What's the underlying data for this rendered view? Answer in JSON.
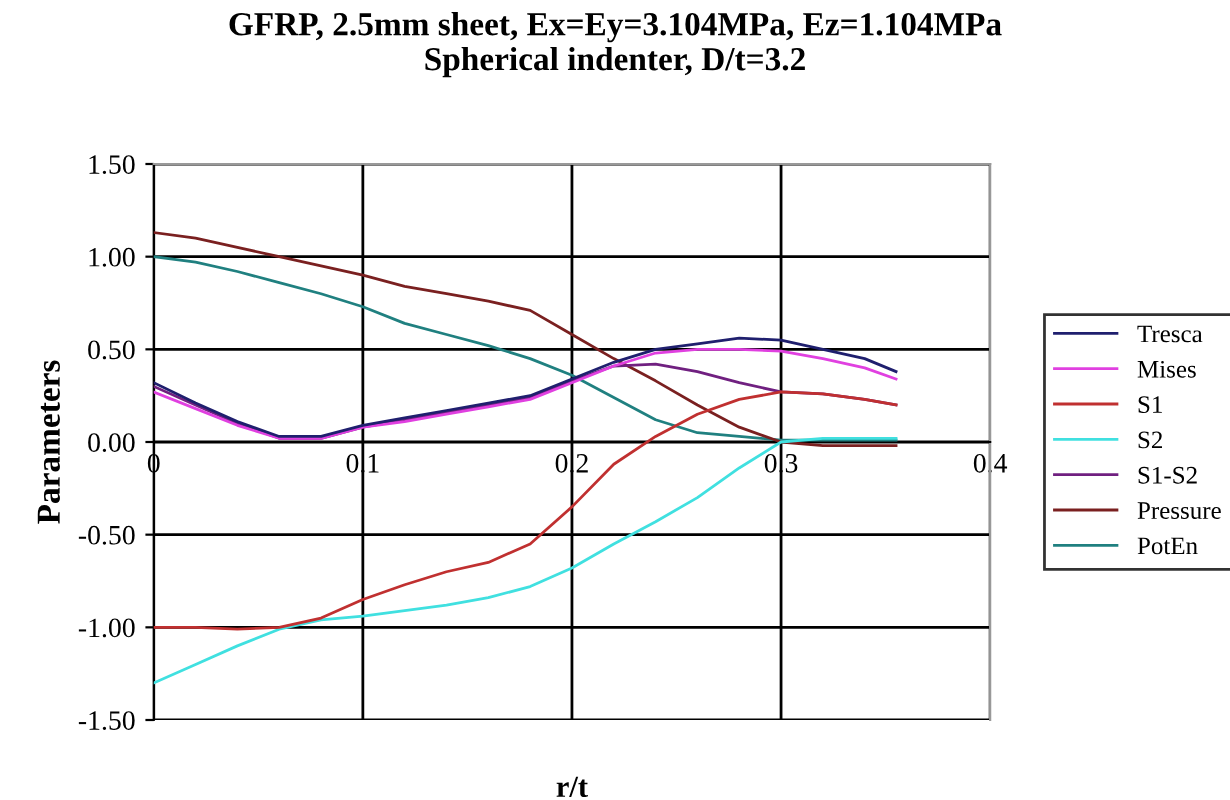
{
  "chart_data": {
    "type": "line",
    "title": "GFRP, 2.5mm sheet, Ex=Ey=3.104MPa, Ez=1.104MPa\nSpherical indenter, D/t=3.2",
    "xlabel": "r/t",
    "ylabel": "Parameters",
    "x": [
      0,
      0.02,
      0.04,
      0.06,
      0.08,
      0.1,
      0.12,
      0.14,
      0.16,
      0.18,
      0.2,
      0.22,
      0.24,
      0.26,
      0.28,
      0.3,
      0.32,
      0.34,
      0.355
    ],
    "series": [
      {
        "name": "Tresca",
        "color": "#1f1f6e",
        "values": [
          0.32,
          0.21,
          0.11,
          0.03,
          0.03,
          0.09,
          0.13,
          0.17,
          0.21,
          0.25,
          0.34,
          0.43,
          0.5,
          0.53,
          0.56,
          0.55,
          0.5,
          0.45,
          0.38
        ]
      },
      {
        "name": "Mises",
        "color": "#e040e0",
        "values": [
          0.27,
          0.18,
          0.09,
          0.02,
          0.02,
          0.08,
          0.11,
          0.15,
          0.19,
          0.23,
          0.32,
          0.41,
          0.48,
          0.5,
          0.5,
          0.49,
          0.45,
          0.4,
          0.34
        ]
      },
      {
        "name": "S1",
        "color": "#c03030",
        "values": [
          -1.0,
          -1.0,
          -1.01,
          -1.0,
          -0.95,
          -0.85,
          -0.77,
          -0.7,
          -0.65,
          -0.55,
          -0.35,
          -0.12,
          0.03,
          0.15,
          0.23,
          0.27,
          0.26,
          0.23,
          0.2
        ]
      },
      {
        "name": "S2",
        "color": "#40e0e0",
        "values": [
          -1.3,
          -1.2,
          -1.1,
          -1.01,
          -0.96,
          -0.94,
          -0.91,
          -0.88,
          -0.84,
          -0.78,
          -0.68,
          -0.55,
          -0.43,
          -0.3,
          -0.14,
          0.0,
          0.02,
          0.02,
          0.02
        ]
      },
      {
        "name": "S1-S2",
        "color": "#702080",
        "values": [
          0.3,
          0.2,
          0.1,
          0.02,
          0.02,
          0.08,
          0.12,
          0.16,
          0.2,
          0.24,
          0.33,
          0.41,
          0.42,
          0.38,
          0.32,
          0.27,
          0.26,
          0.23,
          0.2
        ]
      },
      {
        "name": "Pressure",
        "color": "#7a2020",
        "values": [
          1.13,
          1.1,
          1.05,
          1.0,
          0.95,
          0.9,
          0.84,
          0.8,
          0.76,
          0.71,
          0.58,
          0.45,
          0.33,
          0.2,
          0.08,
          0.0,
          -0.02,
          -0.02,
          -0.02
        ]
      },
      {
        "name": "PotEn",
        "color": "#208080",
        "values": [
          1.0,
          0.97,
          0.92,
          0.86,
          0.8,
          0.73,
          0.64,
          0.58,
          0.52,
          0.45,
          0.36,
          0.24,
          0.12,
          0.05,
          0.03,
          0.01,
          0.01,
          0.01,
          0.01
        ]
      }
    ],
    "xlim": [
      0,
      0.4
    ],
    "ylim": [
      -1.5,
      1.5
    ],
    "xticks": [
      0,
      0.1,
      0.2,
      0.3,
      0.4
    ],
    "yticks": [
      {
        "value": -1.5,
        "label": "-1.50"
      },
      {
        "value": -1.0,
        "label": "-1.00"
      },
      {
        "value": -0.5,
        "label": "-0.50"
      },
      {
        "value": 0,
        "label": "0.00"
      },
      {
        "value": 0.5,
        "label": "0.50"
      },
      {
        "value": 1.0,
        "label": "1.00"
      },
      {
        "value": 1.5,
        "label": "1.50"
      }
    ],
    "grid": true,
    "legend": "right",
    "marker": "none",
    "line_style": "solid"
  }
}
